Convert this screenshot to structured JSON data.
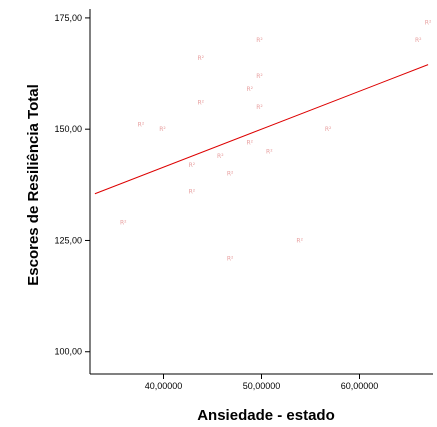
{
  "chart_data": {
    "type": "scatter",
    "title": "",
    "xlabel": "Ansiedade - estado",
    "ylabel": "Escores de Resiliência Total",
    "xlim": [
      32.5,
      67.5
    ],
    "ylim": [
      95,
      177
    ],
    "x_ticks": [
      40,
      50,
      60
    ],
    "x_tick_labels": [
      "40,00000",
      "50,00000",
      "60,00000"
    ],
    "y_ticks": [
      100,
      125,
      150,
      175
    ],
    "y_tick_labels": [
      "100,00",
      "125,00",
      "150,00",
      "175,00"
    ],
    "grid": false,
    "legend": "none",
    "point_marker": "R²",
    "colors": {
      "points": "#e8a0a0",
      "fit_line": "#dd0000",
      "axis": "#000000"
    },
    "points": [
      {
        "x": 35.9,
        "y": 129
      },
      {
        "x": 37.7,
        "y": 151
      },
      {
        "x": 39.9,
        "y": 150
      },
      {
        "x": 42.9,
        "y": 142
      },
      {
        "x": 42.9,
        "y": 136
      },
      {
        "x": 43.8,
        "y": 166
      },
      {
        "x": 43.8,
        "y": 156
      },
      {
        "x": 45.8,
        "y": 144
      },
      {
        "x": 46.8,
        "y": 140
      },
      {
        "x": 46.8,
        "y": 121
      },
      {
        "x": 48.8,
        "y": 159
      },
      {
        "x": 48.8,
        "y": 147
      },
      {
        "x": 49.8,
        "y": 170
      },
      {
        "x": 49.8,
        "y": 162
      },
      {
        "x": 49.8,
        "y": 155
      },
      {
        "x": 50.8,
        "y": 145
      },
      {
        "x": 53.9,
        "y": 125
      },
      {
        "x": 56.8,
        "y": 150
      },
      {
        "x": 66.0,
        "y": 170
      },
      {
        "x": 67.0,
        "y": 174
      }
    ],
    "fit_line": {
      "x": [
        33.0,
        67.0
      ],
      "y": [
        135.5,
        164.5
      ]
    }
  }
}
